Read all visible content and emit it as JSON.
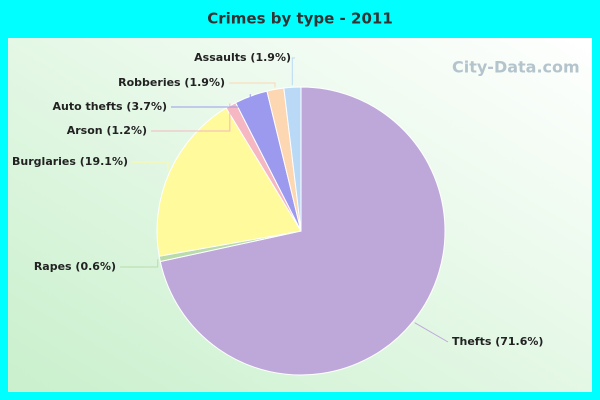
{
  "chart_data": {
    "type": "pie",
    "title": "Crimes by type - 2011",
    "watermark": "City-Data.com",
    "values": [
      71.6,
      0.6,
      19.1,
      1.2,
      3.7,
      1.9,
      1.9
    ],
    "value_labels": [
      "Thefts (71.6%)",
      "Rapes (0.6%)",
      "Burglaries (19.1%)",
      "Arson (1.2%)",
      "Auto thefts (3.7%)",
      "Robberies (1.9%)",
      "Assaults (1.9%)"
    ],
    "colors": [
      "#bea8da",
      "#b9dcaa",
      "#fffa9c",
      "#f5b7c1",
      "#9c9aee",
      "#fdd6b2",
      "#b9d9f6"
    ]
  }
}
